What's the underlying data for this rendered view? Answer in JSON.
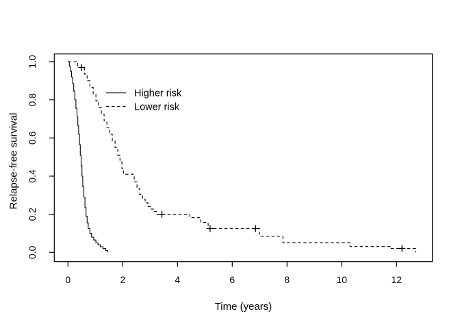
{
  "chart_data": {
    "type": "line",
    "subtype": "kaplan-meier-step-curves",
    "title": "",
    "xlabel": "Time (years)",
    "ylabel": "Relapse-free survival",
    "xlim": [
      0,
      13.3
    ],
    "ylim": [
      0,
      1.0
    ],
    "grid": false,
    "background": "#ffffff",
    "axis_color": "#000000",
    "legend_position": "inside-upper-left",
    "x_ticks": [
      {
        "v": 0,
        "label": "0"
      },
      {
        "v": 2,
        "label": "2"
      },
      {
        "v": 4,
        "label": "4"
      },
      {
        "v": 6,
        "label": "6"
      },
      {
        "v": 8,
        "label": "8"
      },
      {
        "v": 10,
        "label": "10"
      },
      {
        "v": 12,
        "label": "12"
      }
    ],
    "y_ticks": [
      {
        "v": 0.0,
        "label": "0.0"
      },
      {
        "v": 0.2,
        "label": "0.2"
      },
      {
        "v": 0.4,
        "label": "0.4"
      },
      {
        "v": 0.6,
        "label": "0.6"
      },
      {
        "v": 0.8,
        "label": "0.8"
      },
      {
        "v": 1.0,
        "label": "1.0"
      }
    ],
    "series": [
      {
        "name": "Higher risk",
        "line_style": "solid",
        "color": "#000000",
        "steps": [
          [
            0,
            1.0
          ],
          [
            0.05,
            0.975
          ],
          [
            0.09,
            0.95
          ],
          [
            0.13,
            0.92
          ],
          [
            0.17,
            0.885
          ],
          [
            0.21,
            0.845
          ],
          [
            0.25,
            0.8
          ],
          [
            0.29,
            0.755
          ],
          [
            0.33,
            0.71
          ],
          [
            0.36,
            0.665
          ],
          [
            0.39,
            0.62
          ],
          [
            0.42,
            0.565
          ],
          [
            0.45,
            0.51
          ],
          [
            0.48,
            0.455
          ],
          [
            0.51,
            0.4
          ],
          [
            0.54,
            0.345
          ],
          [
            0.58,
            0.29
          ],
          [
            0.62,
            0.235
          ],
          [
            0.66,
            0.19
          ],
          [
            0.7,
            0.155
          ],
          [
            0.74,
            0.125
          ],
          [
            0.8,
            0.1
          ],
          [
            0.86,
            0.08
          ],
          [
            0.94,
            0.065
          ],
          [
            1.02,
            0.05
          ],
          [
            1.1,
            0.04
          ],
          [
            1.18,
            0.03
          ],
          [
            1.28,
            0.02
          ],
          [
            1.38,
            0.01
          ],
          [
            1.45,
            0.0
          ]
        ],
        "censor_marks": []
      },
      {
        "name": "Lower risk",
        "line_style": "dashed",
        "color": "#000000",
        "steps": [
          [
            0,
            1.0
          ],
          [
            0.35,
            0.97
          ],
          [
            0.6,
            0.935
          ],
          [
            0.7,
            0.9
          ],
          [
            0.8,
            0.865
          ],
          [
            0.92,
            0.83
          ],
          [
            1.02,
            0.795
          ],
          [
            1.12,
            0.76
          ],
          [
            1.22,
            0.725
          ],
          [
            1.32,
            0.69
          ],
          [
            1.42,
            0.655
          ],
          [
            1.52,
            0.62
          ],
          [
            1.62,
            0.585
          ],
          [
            1.72,
            0.55
          ],
          [
            1.82,
            0.51
          ],
          [
            1.9,
            0.475
          ],
          [
            1.97,
            0.44
          ],
          [
            2.03,
            0.41
          ],
          [
            2.42,
            0.37
          ],
          [
            2.52,
            0.335
          ],
          [
            2.62,
            0.305
          ],
          [
            2.72,
            0.28
          ],
          [
            2.82,
            0.26
          ],
          [
            2.92,
            0.24
          ],
          [
            3.02,
            0.227
          ],
          [
            3.12,
            0.215
          ],
          [
            3.25,
            0.2
          ],
          [
            4.45,
            0.182
          ],
          [
            4.85,
            0.157
          ],
          [
            5.12,
            0.125
          ],
          [
            7.0,
            0.085
          ],
          [
            7.85,
            0.051
          ],
          [
            10.3,
            0.031
          ],
          [
            11.77,
            0.021
          ],
          [
            12.7,
            0.0
          ]
        ],
        "censor_marks": [
          [
            0.5,
            0.97
          ],
          [
            3.43,
            0.2
          ],
          [
            5.19,
            0.125
          ],
          [
            6.85,
            0.125
          ],
          [
            12.2,
            0.021
          ]
        ]
      }
    ]
  }
}
